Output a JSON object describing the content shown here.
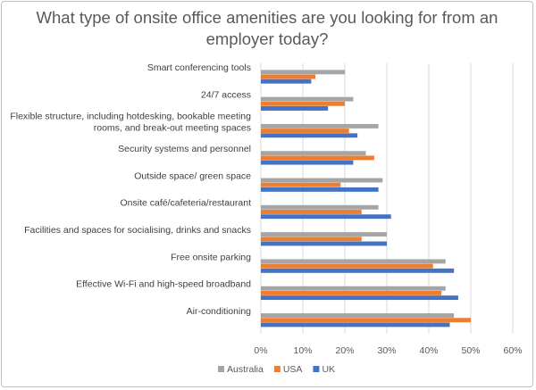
{
  "chart_data": {
    "type": "bar",
    "orientation": "horizontal",
    "title": "What type of onsite office amenities are you looking for from an employer today?",
    "categories": [
      "Smart conferencing tools",
      "24/7 access",
      "Flexible structure, including hotdesking, bookable meeting rooms, and break-out meeting spaces",
      "Security systems and personnel",
      "Outside space/ green space",
      "Onsite café/cafeteria/restaurant",
      "Facilities and spaces for socialising, drinks and snacks",
      "Free onsite parking",
      "Effective Wi-Fi and high-speed broadband",
      "Air-conditioning"
    ],
    "series": [
      {
        "name": "Australia",
        "color": "#a5a5a5",
        "values": [
          0.2,
          0.22,
          0.28,
          0.25,
          0.29,
          0.28,
          0.3,
          0.44,
          0.44,
          0.46
        ]
      },
      {
        "name": "USA",
        "color": "#ed7d31",
        "values": [
          0.13,
          0.2,
          0.21,
          0.27,
          0.19,
          0.24,
          0.24,
          0.41,
          0.43,
          0.5
        ]
      },
      {
        "name": "UK",
        "color": "#4472c4",
        "values": [
          0.12,
          0.16,
          0.23,
          0.22,
          0.28,
          0.31,
          0.3,
          0.46,
          0.47,
          0.45
        ]
      }
    ],
    "xlim": [
      0,
      0.6
    ],
    "xticks": [
      "0%",
      "10%",
      "20%",
      "30%",
      "40%",
      "50%",
      "60%"
    ],
    "grid": true,
    "legend_position": "bottom-left"
  }
}
